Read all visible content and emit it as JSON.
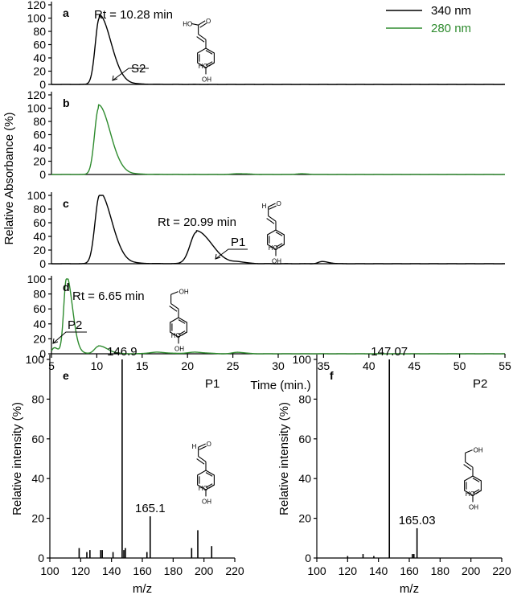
{
  "chart_data": [
    {
      "id": "hplc",
      "type": "line",
      "xlabel": "Time (min.)",
      "ylabel": "Relative Absorbance (%)",
      "xlim": [
        5,
        55
      ],
      "ylim": [
        0,
        120
      ],
      "x_ticks": [
        5,
        10,
        15,
        20,
        25,
        30,
        35,
        40,
        45,
        50,
        55
      ],
      "legend": {
        "placement": "top-right",
        "entries": [
          {
            "name": "340 nm",
            "color": "#000000"
          },
          {
            "name": "280 nm",
            "color": "#2e8b2e"
          }
        ]
      },
      "panels": [
        {
          "letter": "a",
          "wavelength": "340 nm",
          "color": "#000000",
          "y_ticks": [
            0,
            20,
            40,
            60,
            80,
            100,
            120
          ],
          "peaks": [
            {
              "rt": 10.28,
              "height": 100,
              "width": 0.45,
              "tail": 1.4
            }
          ],
          "annotations": [
            {
              "text": "Rt = 10.28 min"
            },
            {
              "text": "S2"
            }
          ],
          "structure": "caffeic-acid",
          "structure_labels": [
            "HO",
            "O",
            "HO",
            "OH"
          ]
        },
        {
          "letter": "b",
          "wavelength": "280 nm",
          "color": "#2e8b2e",
          "y_ticks": [
            0,
            20,
            40,
            60,
            80,
            100,
            120
          ],
          "peaks": [
            {
              "rt": 10.2,
              "height": 100,
              "width": 0.45,
              "tail": 1.4
            },
            {
              "rt": 25.6,
              "height": 1.2,
              "width": 0.6,
              "tail": 0.8
            },
            {
              "rt": 32.4,
              "height": 1.0,
              "width": 0.5,
              "tail": 0.6
            }
          ],
          "annotations": [],
          "structure": ""
        },
        {
          "letter": "c",
          "wavelength": "340 nm",
          "color": "#000000",
          "y_ticks": [
            0,
            20,
            40,
            60,
            80,
            100
          ],
          "peaks": [
            {
              "rt": 10.3,
              "height": 100,
              "width": 0.5,
              "tail": 1.4
            },
            {
              "rt": 20.99,
              "height": 46,
              "width": 0.7,
              "tail": 1.6
            },
            {
              "rt": 25.6,
              "height": 2,
              "width": 0.5,
              "tail": 0.6
            },
            {
              "rt": 34.8,
              "height": 3,
              "width": 0.4,
              "tail": 0.6
            }
          ],
          "annotations": [
            {
              "text": "Rt = 20.99 min"
            },
            {
              "text": "P1"
            }
          ],
          "structure": "caffeyl-aldehyde",
          "structure_labels": [
            "H",
            "O",
            "HO",
            "OH"
          ]
        },
        {
          "letter": "d",
          "wavelength": "280 nm",
          "color": "#2e8b2e",
          "y_ticks": [
            0,
            20,
            40,
            60,
            80,
            100
          ],
          "peaks": [
            {
              "rt": 5.3,
              "height": 8,
              "width": 0.25,
              "tail": 0.4
            },
            {
              "rt": 6.65,
              "height": 100,
              "width": 0.3,
              "tail": 0.6
            },
            {
              "rt": 10.2,
              "height": 10,
              "width": 0.45,
              "tail": 0.9
            },
            {
              "rt": 16.5,
              "height": 2,
              "width": 0.8,
              "tail": 0.8
            },
            {
              "rt": 20.7,
              "height": 2,
              "width": 0.8,
              "tail": 0.8
            },
            {
              "rt": 25.5,
              "height": 2,
              "width": 0.5,
              "tail": 0.5
            }
          ],
          "annotations": [
            {
              "text": "Rt = 6.65 min"
            },
            {
              "text": "P2"
            }
          ],
          "structure": "caffeyl-alcohol",
          "structure_labels": [
            "OH",
            "HO",
            "OH"
          ]
        }
      ]
    },
    {
      "id": "ms-e",
      "type": "bar",
      "letter": "e",
      "compound": "P1",
      "xlabel": "m/z",
      "ylabel": "Relative intensity (%)",
      "xlim": [
        100,
        220
      ],
      "ylim": [
        0,
        100
      ],
      "x_ticks": [
        100,
        120,
        140,
        160,
        180,
        200,
        220
      ],
      "y_ticks": [
        0,
        20,
        40,
        60,
        80,
        100
      ],
      "x": [
        119,
        124,
        126,
        133,
        134,
        141,
        146.9,
        148,
        149,
        163,
        165.1,
        192,
        196,
        205
      ],
      "values": [
        5,
        3,
        4,
        4,
        4,
        3,
        100,
        4,
        5,
        3,
        21,
        5,
        14,
        6
      ],
      "labels": [
        {
          "x": 146.9,
          "text": "146.9"
        },
        {
          "x": 165.1,
          "text": "165.1"
        }
      ],
      "structure": "caffeyl-aldehyde",
      "structure_labels": [
        "H",
        "O",
        "HO",
        "OH"
      ]
    },
    {
      "id": "ms-f",
      "type": "bar",
      "letter": "f",
      "compound": "P2",
      "xlabel": "m/z",
      "ylabel": "Relative intensity (%)",
      "xlim": [
        100,
        220
      ],
      "ylim": [
        0,
        100
      ],
      "x_ticks": [
        100,
        120,
        140,
        160,
        180,
        200,
        220
      ],
      "y_ticks": [
        0,
        20,
        40,
        60,
        80,
        100
      ],
      "x": [
        120,
        130,
        137,
        147.07,
        162,
        163,
        165.03
      ],
      "values": [
        1,
        2,
        1,
        100,
        2,
        2,
        15
      ],
      "labels": [
        {
          "x": 147.07,
          "text": "147.07"
        },
        {
          "x": 165.03,
          "text": "165.03"
        }
      ],
      "structure": "caffeyl-alcohol",
      "structure_labels": [
        "OH",
        "HO",
        "OH"
      ]
    }
  ]
}
